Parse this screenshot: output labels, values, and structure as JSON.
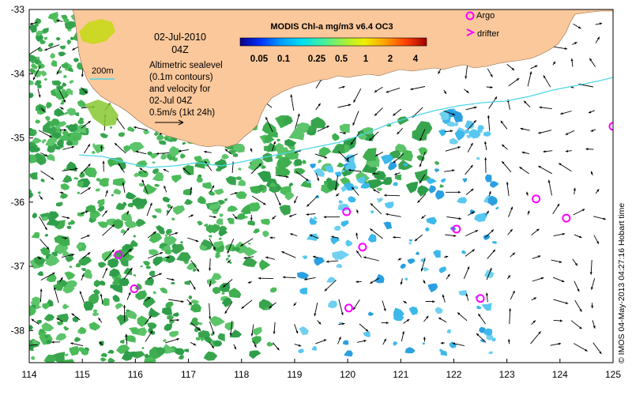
{
  "map": {
    "date": "02-Jul-2010",
    "time": "04Z",
    "isobath_label": "200m",
    "description_lines": [
      "Altimetric sealevel",
      "(0.1m contours)",
      "and velocity for",
      "02-Jul 04Z"
    ],
    "scale_label": "0.5m/s (1kt 24h)",
    "credit": "© IMOS 04-May-2013 04:27:16 Hobart time",
    "x_ticks": [
      "114",
      "115",
      "116",
      "117",
      "118",
      "119",
      "120",
      "121",
      "122",
      "123",
      "124",
      "125"
    ],
    "y_ticks": [
      "-33",
      "-34",
      "-35",
      "-36",
      "-37",
      "-38"
    ],
    "lon_range": [
      114,
      125
    ],
    "lat_range": [
      -38.5,
      -33
    ]
  },
  "colorbar": {
    "title": "MODIS Chl-a mg/m3 v6.4 OC3",
    "tick_labels": [
      "0.05",
      "0.1",
      "0.25",
      "0.5",
      "1",
      "2",
      "4"
    ],
    "colors": [
      "#08008c",
      "#0033ff",
      "#00a0ff",
      "#00e0f0",
      "#40f0a0",
      "#a0f040",
      "#f0f000",
      "#ffa000",
      "#ff4000",
      "#a00000"
    ]
  },
  "legend": {
    "argo_label": "Argo",
    "drifter_label": "drifter",
    "argo_color": "#ff00ff"
  },
  "colors": {
    "land": "#fbc89b",
    "isobath": "#4fd6e8",
    "chl_green": "#3fae4f"
  },
  "argo_floats": [
    {
      "lon": 115.68,
      "lat": -36.82
    },
    {
      "lon": 115.98,
      "lat": -37.35
    },
    {
      "lon": 119.98,
      "lat": -36.15
    },
    {
      "lon": 120.28,
      "lat": -36.7
    },
    {
      "lon": 120.02,
      "lat": -37.65
    },
    {
      "lon": 122.05,
      "lat": -36.42
    },
    {
      "lon": 122.5,
      "lat": -37.5
    },
    {
      "lon": 123.55,
      "lat": -35.95
    },
    {
      "lon": 124.12,
      "lat": -36.25
    },
    {
      "lon": 125.0,
      "lat": -34.82
    }
  ]
}
